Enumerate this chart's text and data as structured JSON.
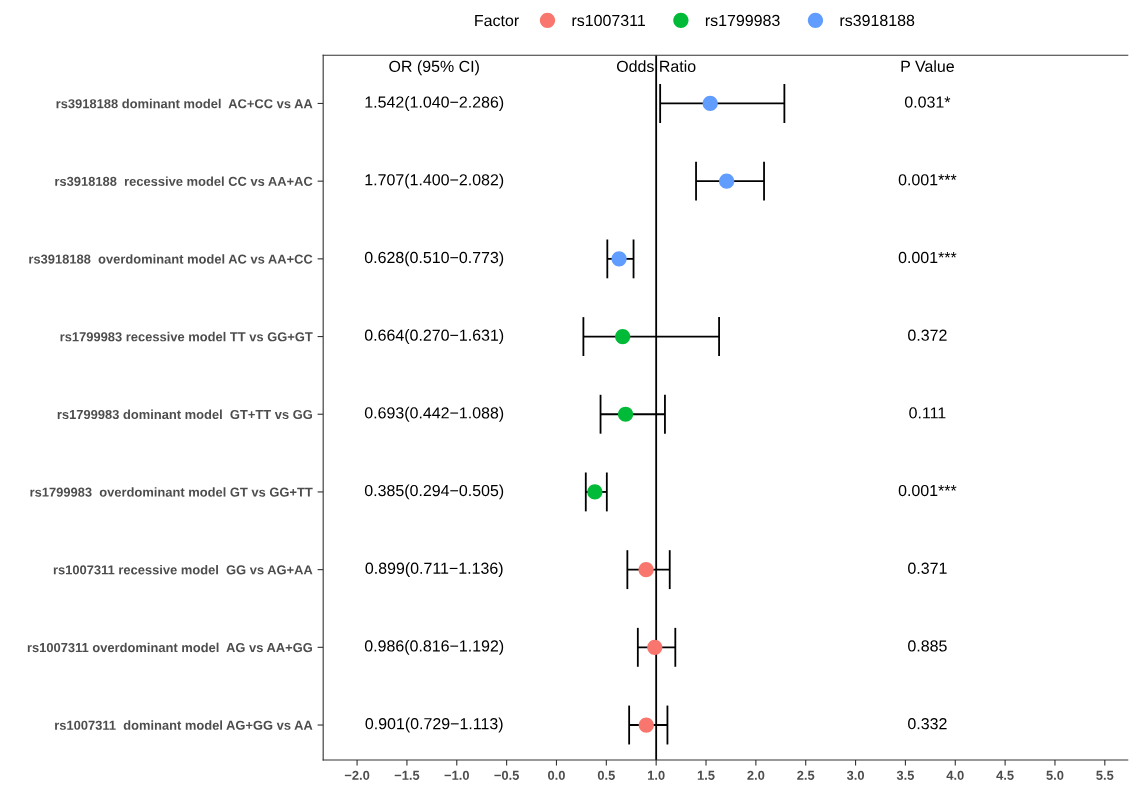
{
  "chart_data": {
    "type": "scatter",
    "orientation": "horizontal",
    "categories": [
      "rs3918188 dominant model  AC+CC vs AA",
      "rs3918188  recessive model CC vs AA+AC",
      "rs3918188  overdominant model AC vs AA+CC",
      "rs1799983 recessive model TT vs GG+GT",
      "rs1799983 dominant model  GT+TT vs GG",
      "rs1799983  overdominant model GT vs GG+TT",
      "rs1007311 recessive model  GG vs AG+AA",
      "rs1007311 overdominant model  AG vs AA+GG",
      "rs1007311  dominant model AG+GG vs AA"
    ],
    "legend_title": "Factor",
    "legend": "top",
    "series": [
      {
        "name": "rs1007311",
        "color": "#f8766d",
        "values": [
          null,
          null,
          null,
          null,
          null,
          null,
          0.899,
          0.986,
          0.901
        ],
        "errors": [
          null,
          null,
          null,
          null,
          null,
          null,
          [
            0.711,
            1.136
          ],
          [
            0.816,
            1.192
          ],
          [
            0.729,
            1.113
          ]
        ]
      },
      {
        "name": "rs1799983",
        "color": "#00ba38",
        "values": [
          null,
          null,
          null,
          0.664,
          0.693,
          0.385,
          null,
          null,
          null
        ],
        "errors": [
          null,
          null,
          null,
          [
            0.27,
            1.631
          ],
          [
            0.442,
            1.088
          ],
          [
            0.294,
            0.505
          ],
          null,
          null,
          null
        ]
      },
      {
        "name": "rs3918188",
        "color": "#619cff",
        "values": [
          1.542,
          1.707,
          0.628,
          null,
          null,
          null,
          null,
          null,
          null
        ],
        "errors": [
          [
            1.04,
            2.286
          ],
          [
            1.4,
            2.082
          ],
          [
            0.51,
            0.773
          ],
          null,
          null,
          null,
          null,
          null,
          null
        ]
      }
    ],
    "marker": "circle",
    "xlim": [
      -2.34,
      5.73
    ],
    "xticks": [
      {
        "value": -2.0,
        "label": "−2.0"
      },
      {
        "value": -1.5,
        "label": "−1.5"
      },
      {
        "value": -1.0,
        "label": "−1.0"
      },
      {
        "value": -0.5,
        "label": "−0.5"
      },
      {
        "value": 0.0,
        "label": "0.0"
      },
      {
        "value": 0.5,
        "label": "0.5"
      },
      {
        "value": 1.0,
        "label": "1.0"
      },
      {
        "value": 1.5,
        "label": "1.5"
      },
      {
        "value": 2.0,
        "label": "2.0"
      },
      {
        "value": 2.5,
        "label": "2.5"
      },
      {
        "value": 3.0,
        "label": "3.0"
      },
      {
        "value": 3.5,
        "label": "3.5"
      },
      {
        "value": 4.0,
        "label": "4.0"
      },
      {
        "value": 4.5,
        "label": "4.5"
      },
      {
        "value": 5.0,
        "label": "5.0"
      },
      {
        "value": 5.5,
        "label": "5.5"
      }
    ],
    "ref_lines": [
      {
        "axis": "x",
        "value": 1.0,
        "color": "#000000"
      }
    ],
    "grid": false,
    "annotations": [
      "OR (95% CI)",
      "Odds Ratio",
      "P Value",
      "1.542(1.040−2.286)",
      "1.707(1.400−2.082)",
      "0.628(0.510−0.773)",
      "0.664(0.270−1.631)",
      "0.693(0.442−1.088)",
      "0.385(0.294−0.505)",
      "0.899(0.711−1.136)",
      "0.986(0.816−1.192)",
      "0.901(0.729−1.113)",
      "0.031*",
      "0.001***",
      "0.001***",
      "0.372",
      "0.111",
      "0.001***",
      "0.371",
      "0.885",
      "0.332"
    ]
  }
}
